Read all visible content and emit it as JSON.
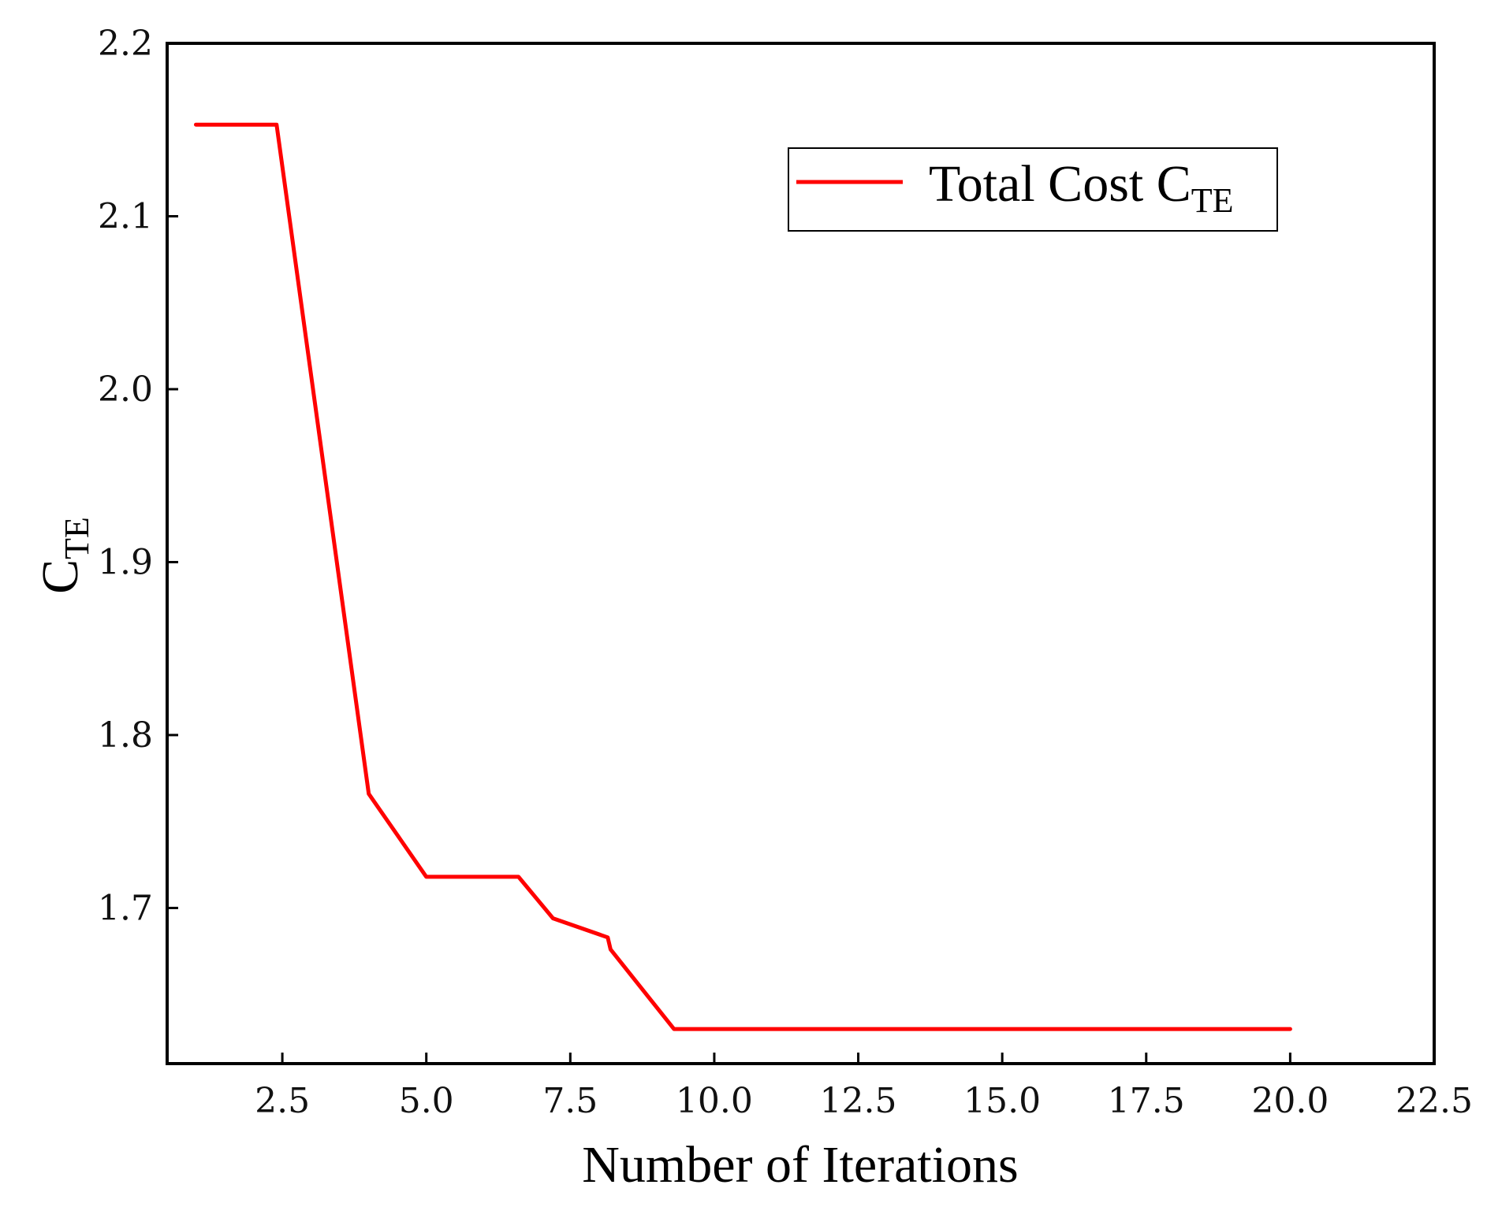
{
  "chart_data": {
    "type": "line",
    "title": "",
    "xlabel": "Number of Iterations",
    "ylabel": {
      "main": "C",
      "sub": "TE"
    },
    "xlim": [
      0.5,
      22.5
    ],
    "ylim": [
      1.61,
      2.2
    ],
    "xticks": [
      "2.5",
      "5.0",
      "7.5",
      "10.0",
      "12.5",
      "15.0",
      "17.5",
      "20.0",
      "22.5"
    ],
    "yticks": [
      "1.7",
      "1.8",
      "1.9",
      "2.0",
      "2.1",
      "2.2"
    ],
    "grid": false,
    "legend_position": "top-right",
    "series": [
      {
        "name": "Total Cost C_TE",
        "legend_label": {
          "main": "Total Cost C",
          "sub": "TE"
        },
        "color": "#ff0000",
        "x": [
          1,
          2.4,
          4,
          5,
          6.6,
          7.2,
          8.15,
          8.2,
          9.3,
          20
        ],
        "y": [
          2.153,
          2.153,
          1.766,
          1.718,
          1.718,
          1.694,
          1.683,
          1.676,
          1.63,
          1.63
        ]
      }
    ]
  },
  "colors": {
    "axis": "#000000",
    "series": "#ff0000"
  }
}
